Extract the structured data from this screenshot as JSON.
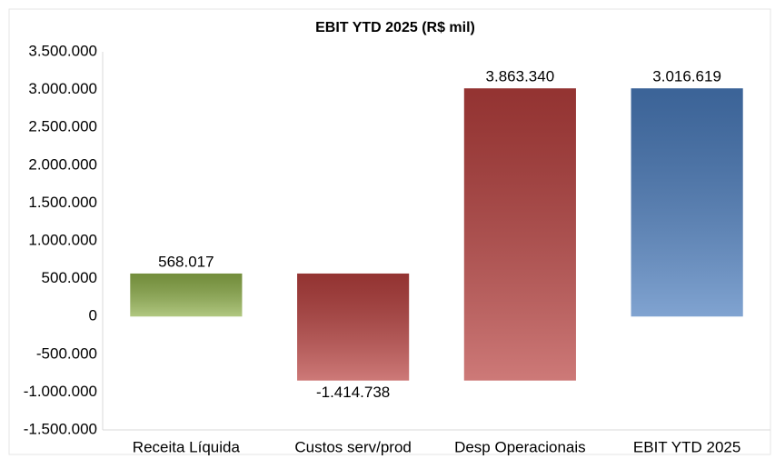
{
  "chart_data": {
    "type": "waterfall",
    "title": "EBIT YTD 2025 (R$ mil)",
    "categories": [
      "Receita Líquida",
      "Custos serv/prod",
      "Desp Operacionais",
      "EBIT YTD 2025"
    ],
    "values": [
      568017,
      -1414738,
      3863340,
      3016619
    ],
    "value_labels": [
      "568.017",
      "-1.414.738",
      "3.863.340",
      "3.016.619"
    ],
    "measure": [
      "relative",
      "relative",
      "relative",
      "total"
    ],
    "colors": [
      "#8fb04a",
      "#b8403e",
      "#b8403e",
      "#4a7cbd"
    ],
    "ylim": [
      -1500000,
      3500000
    ],
    "yticks": [
      {
        "value": -1500000,
        "label": "-1.500.000"
      },
      {
        "value": -1000000,
        "label": "-1.000.000"
      },
      {
        "value": -500000,
        "label": "-500.000"
      },
      0,
      {
        "value": 500000,
        "label": "500.000"
      },
      {
        "value": 1000000,
        "label": "1.000.000"
      },
      {
        "value": 1500000,
        "label": "1.500.000"
      },
      {
        "value": 2000000,
        "label": "2.000.000"
      },
      {
        "value": 2500000,
        "label": "2.500.000"
      },
      {
        "value": 3000000,
        "label": "3.000.000"
      },
      {
        "value": 3500000,
        "label": "3.500.000"
      }
    ],
    "grid": false
  }
}
